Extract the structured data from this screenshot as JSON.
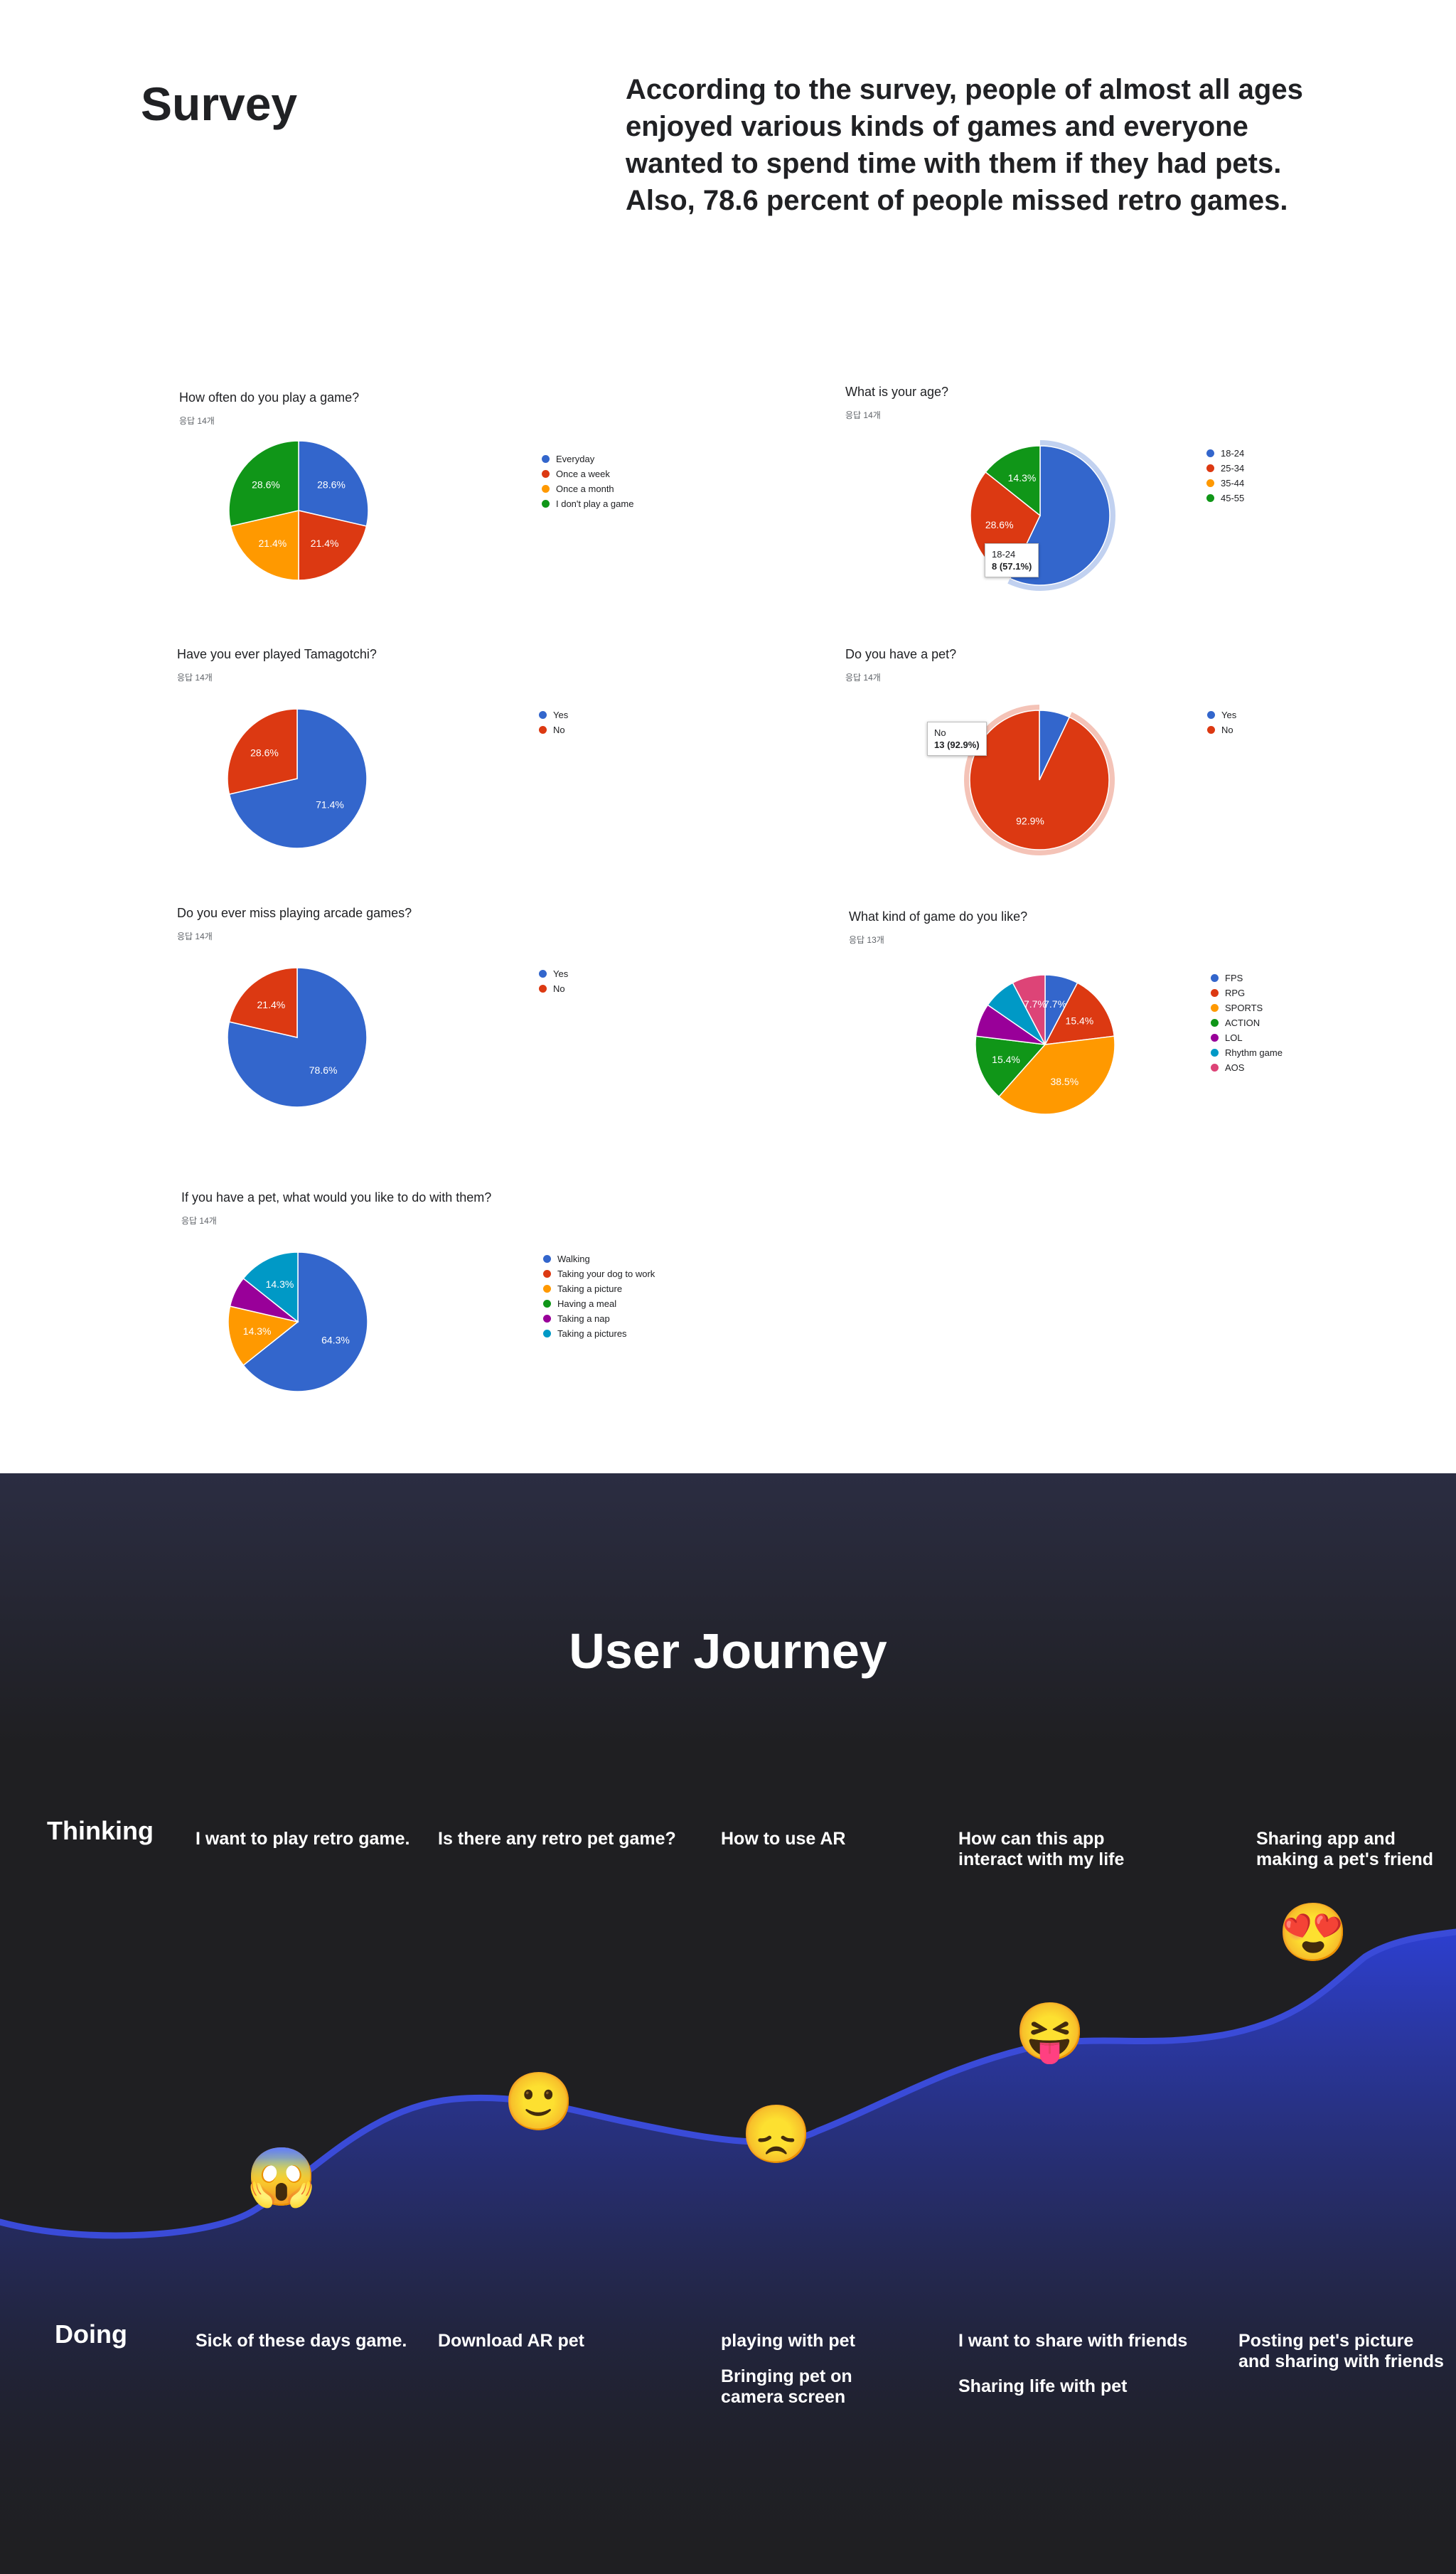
{
  "survey": {
    "title": "Survey",
    "summary": "According to the survey, people of almost all ages enjoyed various kinds of games and everyone wanted to spend time with them if they had pets. Also, 78.6 percent of people missed retro games."
  },
  "chart_data": [
    {
      "type": "pie",
      "title": "How often do you play a game?",
      "responses": "응답 14개",
      "categories": [
        "Everyday",
        "Once a week",
        "Once a month",
        "I don't play a game"
      ],
      "values": [
        28.6,
        21.4,
        21.4,
        28.6
      ],
      "labels": [
        "28.6%",
        "21.4%",
        "21.4%",
        "28.6%"
      ],
      "colors": [
        "#3366cc",
        "#dc3912",
        "#ff9900",
        "#109618"
      ],
      "legend": "right"
    },
    {
      "type": "pie",
      "title": "What is your age?",
      "responses": "응답 14개",
      "categories": [
        "18-24",
        "25-34",
        "35-44",
        "45-55"
      ],
      "values": [
        57.1,
        28.6,
        0,
        14.3
      ],
      "labels": [
        "",
        "28.6%",
        "",
        "14.3%"
      ],
      "colors": [
        "#3366cc",
        "#dc3912",
        "#ff9900",
        "#109618"
      ],
      "highlight": 0,
      "tooltip": {
        "label": "18-24",
        "value": "8 (57.1%)"
      },
      "legend": "right"
    },
    {
      "type": "pie",
      "title": "Have you ever played Tamagotchi?",
      "responses": "응답 14개",
      "categories": [
        "Yes",
        "No"
      ],
      "values": [
        71.4,
        28.6
      ],
      "labels": [
        "71.4%",
        "28.6%"
      ],
      "colors": [
        "#3366cc",
        "#dc3912"
      ],
      "legend": "right"
    },
    {
      "type": "pie",
      "title": "Do you have a pet?",
      "responses": "응답 14개",
      "categories": [
        "Yes",
        "No"
      ],
      "values": [
        7.1,
        92.9
      ],
      "labels": [
        "",
        "92.9%"
      ],
      "colors": [
        "#3366cc",
        "#dc3912"
      ],
      "highlight": 1,
      "tooltip": {
        "label": "No",
        "value": "13 (92.9%)"
      },
      "legend": "right"
    },
    {
      "type": "pie",
      "title": "Do you ever miss playing arcade games?",
      "responses": "응답 14개",
      "categories": [
        "Yes",
        "No"
      ],
      "values": [
        78.6,
        21.4
      ],
      "labels": [
        "78.6%",
        "21.4%"
      ],
      "colors": [
        "#3366cc",
        "#dc3912"
      ],
      "legend": "right"
    },
    {
      "type": "pie",
      "title": "What kind of game do you like?",
      "responses": "응답 13개",
      "categories": [
        "FPS",
        "RPG",
        "SPORTS",
        "ACTION",
        "LOL",
        "Rhythm game",
        "AOS"
      ],
      "values": [
        7.7,
        15.4,
        38.5,
        15.4,
        7.7,
        7.7,
        7.7
      ],
      "labels": [
        "7.7%",
        "15.4%",
        "38.5%",
        "15.4%",
        "",
        "",
        "7.7%"
      ],
      "colors": [
        "#3366cc",
        "#dc3912",
        "#ff9900",
        "#109618",
        "#990099",
        "#0099c6",
        "#dd4477"
      ],
      "legend": "right"
    },
    {
      "type": "pie",
      "title": "If you have a pet, what would you like to do with them?",
      "responses": "응답 14개",
      "categories": [
        "Walking",
        "Taking your dog to work",
        "Taking a picture",
        "Having a meal",
        "Taking a nap",
        "Taking a pictures"
      ],
      "values": [
        64.3,
        0,
        14.3,
        0,
        7.1,
        14.3
      ],
      "labels": [
        "64.3%",
        "",
        "14.3%",
        "",
        "",
        "14.3%"
      ],
      "colors": [
        "#3366cc",
        "#dc3912",
        "#ff9900",
        "#109618",
        "#990099",
        "#0099c6"
      ],
      "legend": "right"
    }
  ],
  "journey": {
    "title": "User Journey",
    "thinking_label": "Thinking",
    "doing_label": "Doing",
    "stages": [
      {
        "thinking": "I want to play retro game.",
        "doing": [
          "Sick of these days game."
        ],
        "emoji": "😱",
        "emotion": "shocked-emoji"
      },
      {
        "thinking": "Is there any retro pet game?",
        "doing": [
          "Download AR pet"
        ],
        "emoji": "🙂",
        "emotion": "smiling-emoji"
      },
      {
        "thinking": "How to use AR",
        "doing": [
          "playing with pet",
          "Bringing pet on camera screen"
        ],
        "emoji": "😞",
        "emotion": "disappointed-emoji"
      },
      {
        "thinking": "How can this app interact with my life",
        "doing": [
          "I want to share with friends",
          "Sharing life with pet"
        ],
        "emoji": "😝",
        "emotion": "tongue-out-emoji"
      },
      {
        "thinking": "Sharing app and making a pet's friend",
        "doing": [
          "Posting pet's picture and sharing with friends"
        ],
        "emoji": "😍",
        "emotion": "heart-eyes-emoji"
      }
    ],
    "colors": {
      "curve": "#3a4bd8",
      "fill": "#2d3fd0"
    }
  }
}
